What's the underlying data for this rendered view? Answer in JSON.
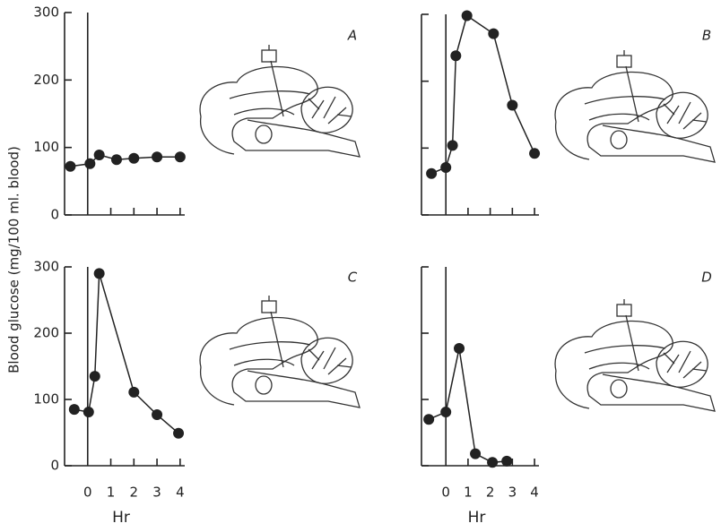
{
  "ylabel": "Blood glucose (mg/100 ml. blood)",
  "chart_data": [
    {
      "type": "line",
      "label": "A",
      "color": "#222",
      "xlim": [
        -1,
        4.2
      ],
      "ylim": [
        0,
        300
      ],
      "xticks": [
        0,
        1,
        2,
        3,
        4
      ],
      "yticks": [
        0,
        100,
        200,
        300
      ],
      "xtick_labels": false,
      "ytick_labels": true,
      "x": [
        -0.75,
        0.1,
        0.5,
        1.25,
        2,
        3,
        4
      ],
      "values": [
        72,
        76,
        89,
        82,
        84,
        86,
        86
      ]
    },
    {
      "type": "line",
      "label": "B",
      "color": "#222",
      "xlim": [
        -1.1,
        4.2
      ],
      "ylim": [
        0,
        300
      ],
      "xticks": [
        0,
        1,
        2,
        3,
        4
      ],
      "yticks": [
        0,
        100,
        200,
        300
      ],
      "xtick_labels": false,
      "ytick_labels": false,
      "x": [
        -0.65,
        0,
        0.3,
        0.45,
        0.95,
        2.15,
        3,
        4
      ],
      "values": [
        62,
        71,
        104,
        238,
        298,
        271,
        164,
        92
      ]
    },
    {
      "type": "line",
      "label": "C",
      "color": "#222",
      "xlim": [
        -1,
        4.2
      ],
      "ylim": [
        0,
        300
      ],
      "xticks": [
        0,
        1,
        2,
        3,
        4
      ],
      "yticks": [
        0,
        100,
        200,
        300
      ],
      "xtick_labels": true,
      "ytick_labels": true,
      "xlabel": "Hr",
      "x": [
        -0.58,
        0.04,
        0.31,
        0.5,
        2,
        3,
        3.93
      ],
      "values": [
        85,
        81,
        135,
        290,
        111,
        77,
        49
      ]
    },
    {
      "type": "line",
      "label": "D",
      "color": "#222",
      "xlim": [
        -1.1,
        4.2
      ],
      "ylim": [
        0,
        300
      ],
      "xticks": [
        0,
        1,
        2,
        3,
        4
      ],
      "yticks": [
        0,
        100,
        200,
        300
      ],
      "xtick_labels": true,
      "ytick_labels": false,
      "xlabel": "Hr",
      "x": [
        -0.77,
        0,
        0.6,
        1.33,
        2.1,
        2.75
      ],
      "values": [
        70,
        81,
        177,
        18,
        5,
        7
      ]
    }
  ]
}
